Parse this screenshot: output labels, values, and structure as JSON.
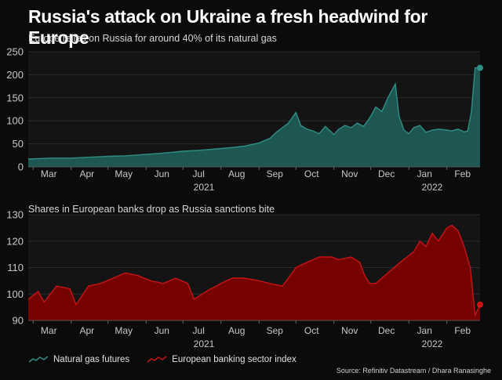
{
  "title": "Russia's attack on Ukraine a fresh headwind for Europe",
  "source": "Source: Refinitiv Datastream / Dhara Ranasinghe",
  "legend": [
    {
      "label": "Natural gas futures",
      "color": "#2f8f86"
    },
    {
      "label": "European banking sector index",
      "color": "#c81414"
    }
  ],
  "chart_data": [
    {
      "type": "area",
      "title": "Europe relies on Russia for around 40% of its natural gas",
      "series": [
        {
          "name": "Natural gas futures",
          "color": "#1f5a55",
          "line_color": "#2f8f86",
          "x": [
            "2021-02-25",
            "2021-03-15",
            "2021-04-01",
            "2021-04-15",
            "2021-05-01",
            "2021-05-15",
            "2021-06-01",
            "2021-06-15",
            "2021-07-01",
            "2021-07-15",
            "2021-08-01",
            "2021-08-10",
            "2021-08-20",
            "2021-09-01",
            "2021-09-10",
            "2021-09-15",
            "2021-09-20",
            "2021-09-25",
            "2021-10-01",
            "2021-10-05",
            "2021-10-10",
            "2021-10-15",
            "2021-10-20",
            "2021-10-25",
            "2021-11-01",
            "2021-11-05",
            "2021-11-10",
            "2021-11-15",
            "2021-11-20",
            "2021-11-25",
            "2021-11-28",
            "2021-12-01",
            "2021-12-05",
            "2021-12-10",
            "2021-12-15",
            "2021-12-21",
            "2021-12-24",
            "2021-12-28",
            "2022-01-01",
            "2022-01-05",
            "2022-01-10",
            "2022-01-15",
            "2022-01-20",
            "2022-01-25",
            "2022-02-01",
            "2022-02-05",
            "2022-02-10",
            "2022-02-15",
            "2022-02-18",
            "2022-02-21",
            "2022-02-24",
            "2022-02-28"
          ],
          "values": [
            17,
            19,
            19,
            21,
            23,
            24,
            27,
            30,
            34,
            36,
            40,
            42,
            45,
            52,
            62,
            75,
            85,
            95,
            118,
            90,
            82,
            78,
            72,
            88,
            70,
            82,
            90,
            85,
            95,
            88,
            98,
            110,
            130,
            120,
            150,
            180,
            110,
            80,
            72,
            85,
            90,
            75,
            80,
            82,
            80,
            78,
            82,
            76,
            78,
            120,
            215,
            215
          ]
        }
      ],
      "ylim": [
        0,
        250
      ],
      "yticks": [
        0,
        50,
        100,
        150,
        200,
        250
      ],
      "xticks": [
        "Mar",
        "Apr",
        "May",
        "Jun",
        "Jul",
        "Aug",
        "Sep",
        "Oct",
        "Nov",
        "Dec",
        "Jan",
        "Feb"
      ],
      "year_labels": [
        "2021",
        "2022"
      ]
    },
    {
      "type": "area",
      "title": "Shares in European banks drop as Russia sanctions bite",
      "series": [
        {
          "name": "European banking sector index",
          "color": "#7a0000",
          "line_color": "#c81414",
          "x": [
            "2021-02-25",
            "2021-03-05",
            "2021-03-10",
            "2021-03-20",
            "2021-03-31",
            "2021-04-05",
            "2021-04-15",
            "2021-04-25",
            "2021-05-05",
            "2021-05-15",
            "2021-05-25",
            "2021-06-05",
            "2021-06-15",
            "2021-06-25",
            "2021-07-05",
            "2021-07-10",
            "2021-07-20",
            "2021-08-01",
            "2021-08-10",
            "2021-08-20",
            "2021-09-01",
            "2021-09-10",
            "2021-09-20",
            "2021-09-25",
            "2021-10-01",
            "2021-10-10",
            "2021-10-20",
            "2021-10-30",
            "2021-11-05",
            "2021-11-15",
            "2021-11-22",
            "2021-11-26",
            "2021-11-30",
            "2021-12-05",
            "2021-12-15",
            "2021-12-25",
            "2022-01-05",
            "2022-01-10",
            "2022-01-15",
            "2022-01-20",
            "2022-01-25",
            "2022-02-01",
            "2022-02-05",
            "2022-02-10",
            "2022-02-15",
            "2022-02-20",
            "2022-02-24",
            "2022-02-28"
          ],
          "values": [
            98,
            101,
            97,
            103,
            102,
            96,
            103,
            104,
            106,
            108,
            107,
            105,
            104,
            106,
            104,
            98,
            101,
            104,
            106,
            106,
            105,
            104,
            103,
            106,
            110,
            112,
            114,
            114,
            113,
            114,
            112,
            107,
            104,
            104,
            108,
            112,
            116,
            120,
            118,
            123,
            120,
            125,
            126,
            124,
            118,
            110,
            92,
            96
          ]
        }
      ],
      "ylim": [
        90,
        130
      ],
      "yticks": [
        90,
        100,
        110,
        120,
        130
      ],
      "xticks": [
        "Mar",
        "Apr",
        "May",
        "Jun",
        "Jul",
        "Aug",
        "Sep",
        "Oct",
        "Nov",
        "Dec",
        "Jan",
        "Feb"
      ],
      "year_labels": [
        "2021",
        "2022"
      ]
    }
  ]
}
